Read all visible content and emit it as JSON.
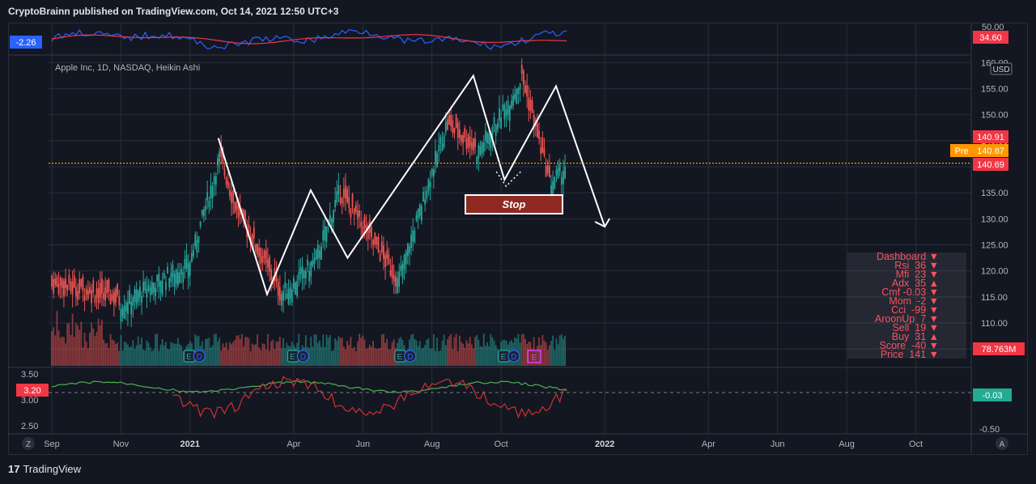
{
  "header": {
    "publish_line": "CryptoBrainn published on TradingView.com, Oct 14, 2021 12:50 UTC+3"
  },
  "symbol_legend": "Apple Inc, 1D, NASDAQ, Heikin Ashi",
  "footer": {
    "brand": "TradingView"
  },
  "colors": {
    "bg": "#131722",
    "up": "#26a69a",
    "down": "#ef5350",
    "grid": "#2a2e39",
    "pivot": "#ff9800"
  },
  "top_osc": {
    "left_label": "-2.26",
    "right_label": "34.60",
    "top_tick": "50.00"
  },
  "price_axis": {
    "ticks": [
      "160.00",
      "155.00",
      "150.00",
      "145.00",
      "140.00",
      "135.00",
      "130.00",
      "125.00",
      "120.00",
      "115.00",
      "110.00",
      "105.00"
    ],
    "currency": "USD",
    "label_high": "140.91",
    "label_pre_tag": "Pre",
    "label_pre": "140.87",
    "label_last": "140.69",
    "volume_label": "78.763M"
  },
  "bottom_osc": {
    "left_ticks": [
      "3.50",
      "3.00",
      "2.50"
    ],
    "left_value": "3.20",
    "right_value": "-0.03",
    "right_bottom": "-0.50"
  },
  "time_axis": {
    "labels": [
      "Sep",
      "Nov",
      "2021",
      "Apr",
      "Jun",
      "Aug",
      "Oct",
      "2022",
      "Apr",
      "Jun",
      "Aug",
      "Oct"
    ]
  },
  "annotation": {
    "stop": "Stop"
  },
  "markers": {
    "earnings": "E",
    "dividend": "D"
  },
  "dashboard": [
    "Dashboard ▼",
    "Rsi  36 ▼",
    "Mfi  23 ▼",
    "Adx  35 ▲",
    "Cmf -0.03 ▼",
    "Mom  -2 ▼",
    "Cci  -99 ▼",
    "AroonUp  7 ▼",
    "Sell  19 ▼",
    "Buy  31 ▲",
    "Score  -40 ▼",
    "Price  141 ▼"
  ],
  "chart_data": {
    "type": "line",
    "title": "Apple Inc, 1D, NASDAQ, Heikin Ashi",
    "ylim": [
      103,
      161
    ],
    "x": [
      "2020-09",
      "2020-11",
      "2021-01",
      "2021-04",
      "2021-06",
      "2021-08",
      "2021-10",
      "2022-01",
      "2022-04",
      "2022-06",
      "2022-08",
      "2022-10"
    ],
    "series": [
      {
        "values": [
          [
            "2021-01-26",
            145.5
          ],
          [
            "2021-03-08",
            115.5
          ],
          [
            "2021-04-16",
            135.5
          ],
          [
            "2021-05-18",
            122.5
          ],
          [
            "2021-09-07",
            157.5
          ],
          [
            "2021-10-04",
            137.5
          ],
          [
            "2021-11-19",
            155.5
          ],
          [
            "2022-01-01",
            128.5
          ]
        ]
      }
    ],
    "price_lines": {
      "last": 140.69,
      "pre": 140.87,
      "high": 140.91
    }
  }
}
